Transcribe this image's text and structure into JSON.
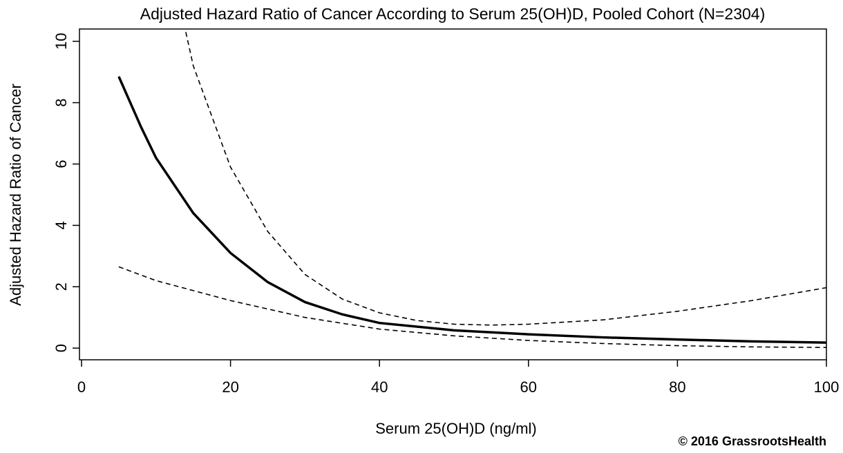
{
  "chart_data": {
    "type": "line",
    "title": "Adjusted Hazard Ratio of Cancer According to Serum 25(OH)D, Pooled Cohort (N=2304)",
    "x_label": "Serum 25(OH)D (ng/ml)",
    "y_label": "Adjusted Hazard Ratio of Cancer",
    "annotation": "© 2016 GrassrootsHealth",
    "xlim": [
      0,
      100
    ],
    "ylim": [
      -0.38,
      10.4
    ],
    "xticks": [
      0,
      20,
      40,
      60,
      80,
      100
    ],
    "yticks": [
      0,
      2,
      4,
      6,
      8,
      10
    ],
    "series": [
      {
        "color": "#000000",
        "style": "solid",
        "x": [
          5,
          8,
          10,
          15,
          20,
          25,
          30,
          35,
          40,
          50,
          60,
          70,
          80,
          90,
          100
        ],
        "values": [
          8.85,
          7.2,
          6.2,
          4.4,
          3.1,
          2.15,
          1.5,
          1.1,
          0.82,
          0.58,
          0.45,
          0.35,
          0.28,
          0.22,
          0.18
        ]
      },
      {
        "color": "#000000",
        "style": "dashed",
        "x": [
          14,
          15,
          20,
          25,
          30,
          35,
          40,
          45,
          50,
          55,
          60,
          70,
          80,
          90,
          100
        ],
        "values": [
          10.3,
          9.2,
          5.9,
          3.8,
          2.4,
          1.6,
          1.15,
          0.9,
          0.78,
          0.75,
          0.78,
          0.92,
          1.2,
          1.55,
          1.97
        ]
      },
      {
        "color": "#000000",
        "style": "dashed",
        "x": [
          5,
          10,
          20,
          30,
          40,
          50,
          60,
          70,
          80,
          90,
          100
        ],
        "values": [
          2.65,
          2.2,
          1.55,
          1.0,
          0.62,
          0.4,
          0.25,
          0.15,
          0.08,
          0.04,
          0.02
        ]
      }
    ]
  }
}
